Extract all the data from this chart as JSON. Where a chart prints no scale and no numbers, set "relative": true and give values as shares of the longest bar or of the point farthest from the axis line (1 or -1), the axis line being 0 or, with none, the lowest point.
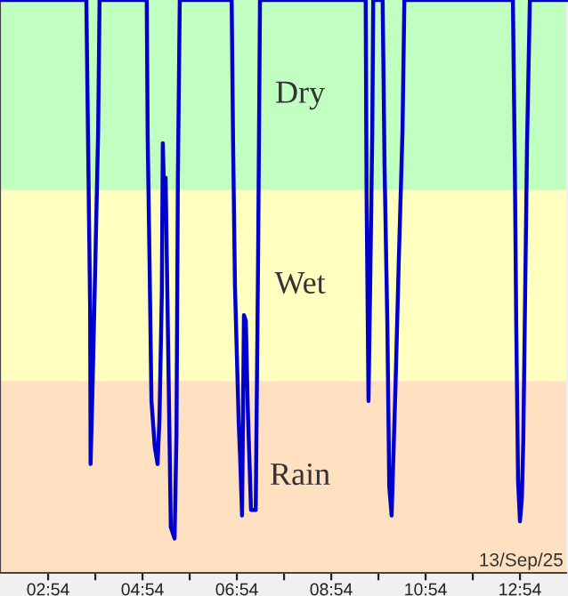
{
  "chart_data": {
    "type": "line",
    "relative": true,
    "xlim": [
      1.88,
      13.88
    ],
    "xticks": [
      {
        "value": 2.9,
        "label": "02:54"
      },
      {
        "value": 3.9,
        "label": null
      },
      {
        "value": 4.9,
        "label": "04:54"
      },
      {
        "value": 5.9,
        "label": null
      },
      {
        "value": 6.9,
        "label": "06:54"
      },
      {
        "value": 7.9,
        "label": null
      },
      {
        "value": 8.9,
        "label": "08:54"
      },
      {
        "value": 9.9,
        "label": null
      },
      {
        "value": 10.9,
        "label": "10:54"
      },
      {
        "value": 11.9,
        "label": null
      },
      {
        "value": 12.9,
        "label": "12:54"
      }
    ],
    "series": [
      {
        "color": "#0000cc",
        "x": [
          1.88,
          3.71,
          3.75,
          3.79,
          3.8,
          3.84,
          3.9,
          3.96,
          3.99,
          4.99,
          5.01,
          5.05,
          5.09,
          5.16,
          5.22,
          5.26,
          5.31,
          5.33,
          5.35,
          5.39,
          5.45,
          5.5,
          5.58,
          5.62,
          5.65,
          5.69,
          6.79,
          6.82,
          6.86,
          6.94,
          6.97,
          7.01,
          7.05,
          7.09,
          7.13,
          7.2,
          7.3,
          7.35,
          7.39,
          9.63,
          9.65,
          9.69,
          9.73,
          9.77,
          9.79,
          9.99,
          10.03,
          10.09,
          10.13,
          10.18,
          10.22,
          10.26,
          10.33,
          10.41,
          10.45,
          12.75,
          12.79,
          12.82,
          12.86,
          12.9,
          12.94,
          12.97,
          13.01,
          13.05,
          13.11,
          13.88
        ],
        "values": [
          1,
          1,
          0.73,
          0.46,
          0.19,
          0.32,
          0.54,
          0.77,
          1,
          1,
          0.76,
          0.54,
          0.3,
          0.22,
          0.19,
          0.27,
          0.49,
          0.75,
          0.69,
          0.69,
          0.36,
          0.08,
          0.06,
          0.24,
          0.69,
          1,
          1,
          0.75,
          0.5,
          0.26,
          0.2,
          0.1,
          0.45,
          0.44,
          0.29,
          0.11,
          0.11,
          0.55,
          1,
          1,
          0.65,
          0.3,
          0.53,
          0.77,
          1,
          1,
          0.71,
          0.43,
          0.15,
          0.1,
          0.21,
          0.32,
          0.54,
          0.77,
          1,
          1,
          0.72,
          0.44,
          0.16,
          0.09,
          0.13,
          0.23,
          0.49,
          0.75,
          1,
          1
        ]
      }
    ],
    "bands": [
      {
        "axis": "y",
        "from": 0.668,
        "to": 1,
        "label": "Dry",
        "color": "#c0ffc0"
      },
      {
        "axis": "y",
        "from": 0.335,
        "to": 0.668,
        "label": "Wet",
        "color": "#ffffc0"
      },
      {
        "axis": "y",
        "from": 0,
        "to": 0.335,
        "label": "Rain",
        "color": "#ffe0c0"
      }
    ],
    "annotations": [
      "13/Sep/25"
    ],
    "grid": false,
    "legend": false,
    "marker": "none",
    "line_style": "solid"
  }
}
